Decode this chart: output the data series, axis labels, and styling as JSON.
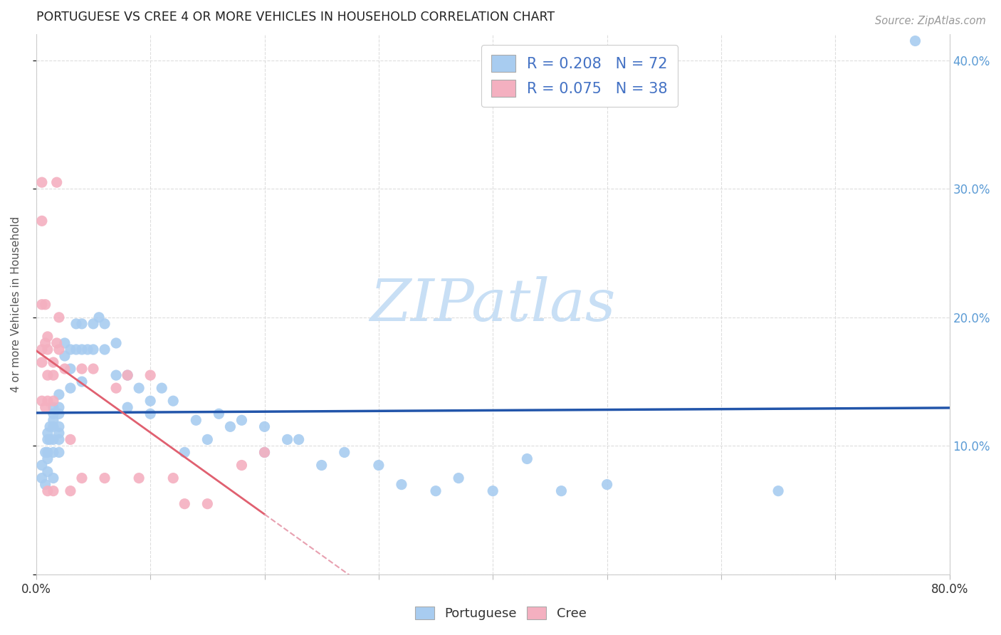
{
  "title": "PORTUGUESE VS CREE 4 OR MORE VEHICLES IN HOUSEHOLD CORRELATION CHART",
  "source": "Source: ZipAtlas.com",
  "ylabel": "4 or more Vehicles in Household",
  "xlim": [
    0.0,
    0.8
  ],
  "ylim": [
    -0.02,
    0.44
  ],
  "plot_ylim": [
    0.0,
    0.42
  ],
  "xtick_positions": [
    0.0,
    0.1,
    0.2,
    0.3,
    0.4,
    0.5,
    0.6,
    0.7,
    0.8
  ],
  "xtick_labels": [
    "0.0%",
    "",
    "",
    "",
    "",
    "",
    "",
    "",
    "80.0%"
  ],
  "ytick_positions": [
    0.0,
    0.1,
    0.2,
    0.3,
    0.4
  ],
  "ytick_labels_right": [
    "",
    "10.0%",
    "20.0%",
    "30.0%",
    "40.0%"
  ],
  "portuguese_color": "#a8ccf0",
  "cree_color": "#f4b0c0",
  "portuguese_line_color": "#2255aa",
  "cree_line_color": "#e06070",
  "cree_line_color_dashed": "#e8a0b0",
  "watermark_color": "#c8dff5",
  "portuguese_x": [
    0.005,
    0.005,
    0.008,
    0.008,
    0.01,
    0.01,
    0.01,
    0.01,
    0.01,
    0.012,
    0.012,
    0.015,
    0.015,
    0.015,
    0.015,
    0.015,
    0.015,
    0.015,
    0.02,
    0.02,
    0.02,
    0.02,
    0.02,
    0.02,
    0.02,
    0.025,
    0.025,
    0.03,
    0.03,
    0.03,
    0.035,
    0.035,
    0.04,
    0.04,
    0.04,
    0.045,
    0.05,
    0.05,
    0.055,
    0.06,
    0.06,
    0.07,
    0.07,
    0.08,
    0.08,
    0.09,
    0.1,
    0.1,
    0.11,
    0.12,
    0.13,
    0.14,
    0.15,
    0.16,
    0.17,
    0.18,
    0.2,
    0.2,
    0.22,
    0.23,
    0.25,
    0.27,
    0.3,
    0.32,
    0.35,
    0.37,
    0.4,
    0.43,
    0.46,
    0.5,
    0.65,
    0.77
  ],
  "portuguese_y": [
    0.085,
    0.075,
    0.095,
    0.07,
    0.11,
    0.105,
    0.095,
    0.09,
    0.08,
    0.115,
    0.105,
    0.13,
    0.125,
    0.12,
    0.115,
    0.105,
    0.095,
    0.075,
    0.14,
    0.13,
    0.125,
    0.115,
    0.11,
    0.105,
    0.095,
    0.18,
    0.17,
    0.175,
    0.16,
    0.145,
    0.195,
    0.175,
    0.195,
    0.175,
    0.15,
    0.175,
    0.195,
    0.175,
    0.2,
    0.195,
    0.175,
    0.18,
    0.155,
    0.155,
    0.13,
    0.145,
    0.135,
    0.125,
    0.145,
    0.135,
    0.095,
    0.12,
    0.105,
    0.125,
    0.115,
    0.12,
    0.115,
    0.095,
    0.105,
    0.105,
    0.085,
    0.095,
    0.085,
    0.07,
    0.065,
    0.075,
    0.065,
    0.09,
    0.065,
    0.07,
    0.065,
    0.415
  ],
  "cree_x": [
    0.005,
    0.005,
    0.005,
    0.005,
    0.005,
    0.005,
    0.008,
    0.008,
    0.008,
    0.01,
    0.01,
    0.01,
    0.01,
    0.01,
    0.015,
    0.015,
    0.015,
    0.015,
    0.018,
    0.018,
    0.02,
    0.02,
    0.025,
    0.03,
    0.03,
    0.04,
    0.04,
    0.05,
    0.06,
    0.07,
    0.08,
    0.09,
    0.1,
    0.12,
    0.13,
    0.15,
    0.18,
    0.2
  ],
  "cree_y": [
    0.305,
    0.275,
    0.21,
    0.175,
    0.165,
    0.135,
    0.21,
    0.18,
    0.13,
    0.185,
    0.175,
    0.155,
    0.135,
    0.065,
    0.165,
    0.155,
    0.135,
    0.065,
    0.305,
    0.18,
    0.2,
    0.175,
    0.16,
    0.105,
    0.065,
    0.16,
    0.075,
    0.16,
    0.075,
    0.145,
    0.155,
    0.075,
    0.155,
    0.075,
    0.055,
    0.055,
    0.085,
    0.095
  ]
}
